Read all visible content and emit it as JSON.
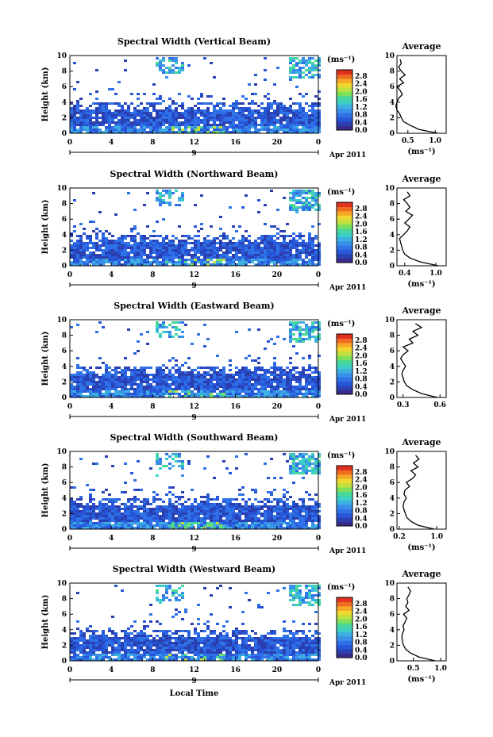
{
  "chart_data": [
    {
      "type": "heatmap",
      "title": "Spectral Width (Vertical Beam)",
      "ylabel": "Height (km)",
      "xticks": [
        "0",
        "4",
        "8",
        "12",
        "16",
        "20",
        "0"
      ],
      "yticks": [
        "0",
        "2",
        "4",
        "6",
        "8",
        "10"
      ],
      "xlim": [
        0,
        24
      ],
      "ylim": [
        0,
        10
      ],
      "date_marker": "9",
      "date_label": "Apr 2011",
      "colorbar": {
        "unit": "(ms⁻¹)",
        "ticks": [
          "0.0",
          "0.4",
          "0.8",
          "1.2",
          "1.6",
          "2.0",
          "2.4",
          "2.8"
        ]
      },
      "average": {
        "title": "Average",
        "xticks": [
          "0.5",
          "1.0"
        ],
        "xlim": [
          0.3,
          1.2
        ],
        "xlabel": "(ms⁻¹)",
        "heights": [
          0,
          0.5,
          1,
          1.5,
          2,
          2.5,
          3,
          3.5,
          4,
          4.5,
          5,
          5.5,
          6,
          6.5,
          7,
          7.5,
          8,
          8.5,
          9,
          9.5
        ],
        "values": [
          1.05,
          0.7,
          0.55,
          0.42,
          0.38,
          0.35,
          0.3,
          0.28,
          0.3,
          0.33,
          0.4,
          0.36,
          0.3,
          0.42,
          0.35,
          0.45,
          0.38,
          0.33,
          0.38,
          0.36
        ]
      }
    },
    {
      "type": "heatmap",
      "title": "Spectral Width (Northward Beam)",
      "ylabel": "Height (km)",
      "xticks": [
        "0",
        "4",
        "8",
        "12",
        "16",
        "20",
        "0"
      ],
      "yticks": [
        "0",
        "2",
        "4",
        "6",
        "8",
        "10"
      ],
      "xlim": [
        0,
        24
      ],
      "ylim": [
        0,
        10
      ],
      "date_marker": "9",
      "date_label": "Apr 2011",
      "colorbar": {
        "unit": "(ms⁻¹)",
        "ticks": [
          "0.0",
          "0.4",
          "0.8",
          "1.2",
          "1.6",
          "2.0",
          "2.4",
          "2.8"
        ]
      },
      "average": {
        "title": "Average",
        "xticks": [
          "0.4",
          "1.0"
        ],
        "xlim": [
          0.25,
          1.2
        ],
        "xlabel": "(ms⁻¹)",
        "heights": [
          0,
          0.5,
          1,
          1.5,
          2,
          2.5,
          3,
          3.5,
          4,
          4.5,
          5,
          5.5,
          6,
          6.5,
          7,
          7.5,
          8,
          8.5,
          9,
          9.5
        ],
        "values": [
          1.05,
          0.7,
          0.5,
          0.4,
          0.36,
          0.34,
          0.32,
          0.3,
          0.38,
          0.45,
          0.5,
          0.4,
          0.48,
          0.55,
          0.42,
          0.5,
          0.45,
          0.38,
          0.5,
          0.45
        ]
      }
    },
    {
      "type": "heatmap",
      "title": "Spectral Width (Eastward Beam)",
      "ylabel": "Height (km)",
      "xticks": [
        "0",
        "4",
        "8",
        "12",
        "16",
        "20",
        "0"
      ],
      "yticks": [
        "0",
        "2",
        "4",
        "6",
        "8",
        "10"
      ],
      "xlim": [
        0,
        24
      ],
      "ylim": [
        0,
        10
      ],
      "date_marker": "9",
      "date_label": "Apr 2011",
      "colorbar": {
        "unit": "(ms⁻¹)",
        "ticks": [
          "0.0",
          "0.4",
          "0.8",
          "1.2",
          "1.6",
          "2.0",
          "2.4",
          "2.8"
        ]
      },
      "average": {
        "title": "Average",
        "xticks": [
          "0.3",
          "0.6"
        ],
        "xlim": [
          0.25,
          0.65
        ],
        "xlabel": "",
        "heights": [
          0,
          0.5,
          1,
          1.5,
          2,
          2.5,
          3,
          3.5,
          4,
          4.5,
          5,
          5.5,
          6,
          6.5,
          7,
          7.5,
          8,
          8.5,
          9,
          9.5
        ],
        "values": [
          0.58,
          0.45,
          0.38,
          0.33,
          0.31,
          0.3,
          0.29,
          0.3,
          0.32,
          0.3,
          0.28,
          0.3,
          0.34,
          0.3,
          0.38,
          0.35,
          0.42,
          0.38,
          0.45,
          0.4
        ]
      }
    },
    {
      "type": "heatmap",
      "title": "Spectral Width (Southward Beam)",
      "ylabel": "Height (km)",
      "xticks": [
        "0",
        "4",
        "8",
        "12",
        "16",
        "20",
        "0"
      ],
      "yticks": [
        "0",
        "2",
        "4",
        "6",
        "8",
        "10"
      ],
      "xlim": [
        0,
        24
      ],
      "ylim": [
        0,
        10
      ],
      "date_marker": "9",
      "date_label": "Apr 2011",
      "colorbar": {
        "unit": "(ms⁻¹)",
        "ticks": [
          "0.0",
          "0.4",
          "0.8",
          "1.2",
          "1.6",
          "2.0",
          "2.4",
          "2.8"
        ]
      },
      "average": {
        "title": "Average",
        "xticks": [
          "0.2",
          "1.0"
        ],
        "xlim": [
          0.15,
          1.2
        ],
        "xlabel": "(ms⁻¹)",
        "heights": [
          0,
          0.5,
          1,
          1.5,
          2,
          2.5,
          3,
          3.5,
          4,
          4.5,
          5,
          5.5,
          6,
          6.5,
          7,
          7.5,
          8,
          8.5,
          9,
          9.5
        ],
        "values": [
          0.95,
          0.6,
          0.45,
          0.36,
          0.33,
          0.3,
          0.28,
          0.3,
          0.35,
          0.3,
          0.32,
          0.42,
          0.35,
          0.48,
          0.55,
          0.45,
          0.6,
          0.5,
          0.62,
          0.55
        ]
      }
    },
    {
      "type": "heatmap",
      "title": "Spectral Width (Westward Beam)",
      "ylabel": "Height (km)",
      "xlabel": "Local Time",
      "xticks": [
        "0",
        "4",
        "8",
        "12",
        "16",
        "20",
        "0"
      ],
      "yticks": [
        "0",
        "2",
        "4",
        "6",
        "8",
        "10"
      ],
      "xlim": [
        0,
        24
      ],
      "ylim": [
        0,
        10
      ],
      "date_marker": "9",
      "date_label": "Apr 2011",
      "colorbar": {
        "unit": "(ms⁻¹)",
        "ticks": [
          "0.0",
          "0.4",
          "0.8",
          "1.2",
          "1.6",
          "2.0",
          "2.4",
          "2.8"
        ]
      },
      "average": {
        "title": "Average",
        "xticks": [
          "0.5",
          "1.0"
        ],
        "xlim": [
          0.2,
          1.1
        ],
        "xlabel": "(ms⁻¹)",
        "heights": [
          0,
          0.5,
          1,
          1.5,
          2,
          2.5,
          3,
          3.5,
          4,
          4.5,
          5,
          5.5,
          6,
          6.5,
          7,
          7.5,
          8,
          8.5,
          9,
          9.5
        ],
        "values": [
          0.9,
          0.6,
          0.45,
          0.36,
          0.32,
          0.3,
          0.29,
          0.3,
          0.33,
          0.31,
          0.35,
          0.38,
          0.32,
          0.42,
          0.36,
          0.4,
          0.38,
          0.42,
          0.45,
          0.4
        ]
      }
    }
  ],
  "colors": {
    "colormap": [
      "#3a2a8a",
      "#2a3fb0",
      "#2757d8",
      "#2f72e8",
      "#3a8fe8",
      "#3cb0e0",
      "#3ccfc4",
      "#48d89a",
      "#7ee05a",
      "#c0e040",
      "#f0d830",
      "#f7a828",
      "#f06a20",
      "#e03020"
    ],
    "axis": "#000000"
  }
}
